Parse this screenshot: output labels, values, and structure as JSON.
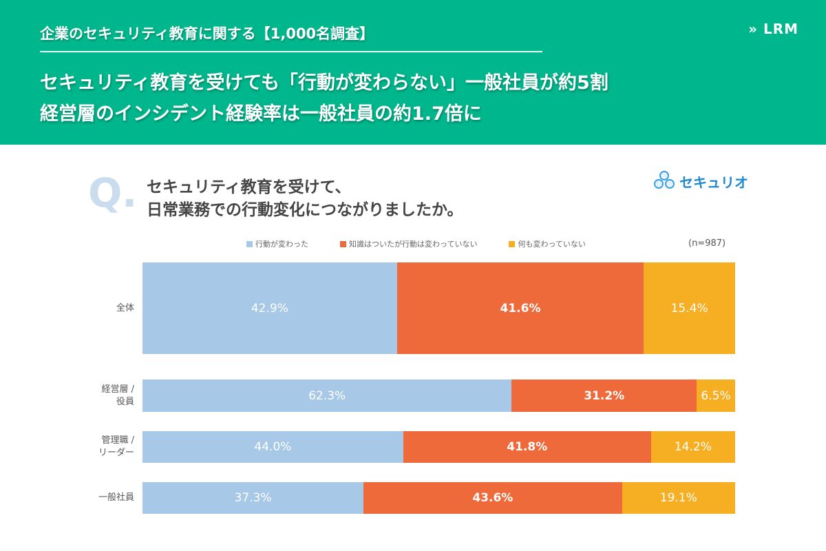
{
  "header": {
    "survey_title": "企業のセキュリティ教育に関する【1,000名調査】",
    "headline_1": "セキュリティ教育を受けても「行動が変わらない」一般社員が約5割",
    "headline_2": "経営層のインシデント経験率は一般社員の約1.7倍に",
    "logo": "LRM",
    "logo_icon": "double-chevron-right-icon"
  },
  "question": {
    "mark": "Q.",
    "line_1": "セキュリティ教育を受けて、",
    "line_2": "日常業務での行動変化につながりましたか。"
  },
  "brand": {
    "name": "セキュリオ"
  },
  "colors": {
    "header": "#00b68c",
    "changed": "#a7c8e6",
    "knowledge_only": "#ee6a3a",
    "unchanged": "#f6ae22"
  },
  "chart_data": {
    "type": "bar",
    "orientation": "horizontal-stacked-100",
    "sample_size": "(n=987)",
    "categories": [
      "全体",
      "経営層 / 役員",
      "管理職 / リーダー",
      "一般社員"
    ],
    "series": [
      {
        "name": "行動が変わった",
        "color": "#a7c8e6",
        "values": [
          42.9,
          62.3,
          44.0,
          37.3
        ],
        "labels": [
          "42.9%",
          "62.3%",
          "44.0%",
          "37.3%"
        ]
      },
      {
        "name": "知識はついたが行動は変わっていない",
        "color": "#ee6a3a",
        "values": [
          41.6,
          31.2,
          41.8,
          43.6
        ],
        "labels": [
          "41.6%",
          "31.2%",
          "41.8%",
          "43.6%"
        ]
      },
      {
        "name": "何も変わっていない",
        "color": "#f6ae22",
        "values": [
          15.4,
          6.5,
          14.2,
          19.1
        ],
        "labels": [
          "15.4%",
          "6.5%",
          "14.2%",
          "19.1%"
        ]
      }
    ],
    "xlim": [
      0,
      100
    ],
    "legend": "top"
  }
}
